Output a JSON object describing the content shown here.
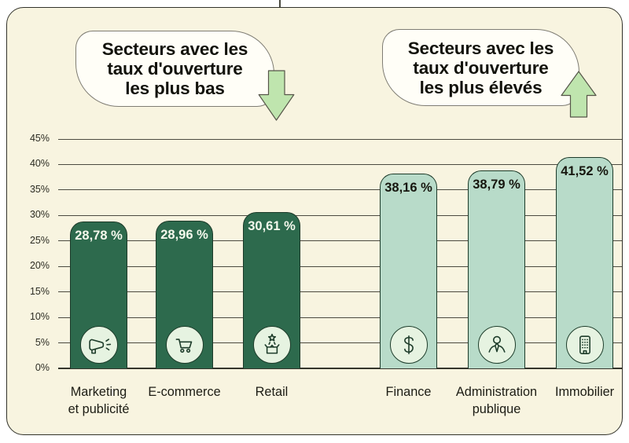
{
  "callouts": {
    "low": {
      "text": "Secteurs avec les\ntaux d'ouverture\nles plus bas",
      "arrow": "down"
    },
    "high": {
      "text": "Secteurs avec les\ntaux d'ouverture\nles plus élevés",
      "arrow": "up"
    }
  },
  "chart_data": {
    "type": "bar",
    "categories": [
      "Marketing et publicité",
      "E-commerce",
      "Retail",
      "Finance",
      "Administration publique",
      "Immobilier"
    ],
    "categories_display": [
      "Marketing\net publicité",
      "E-commerce",
      "Retail",
      "Finance",
      "Administration\npublique",
      "Immobilier"
    ],
    "values": [
      28.78,
      28.96,
      30.61,
      38.16,
      38.79,
      41.52
    ],
    "value_labels": [
      "28,78 %",
      "28,96 %",
      "30,61 %",
      "38,16 %",
      "38,79 %",
      "41,52 %"
    ],
    "groups": [
      "low",
      "low",
      "low",
      "high",
      "high",
      "high"
    ],
    "icons": [
      "megaphone-icon",
      "cart-icon",
      "gift-icon",
      "dollar-icon",
      "person-tie-icon",
      "building-icon"
    ],
    "y_ticks": [
      "45%",
      "40%",
      "35%",
      "30%",
      "25%",
      "20%",
      "15%",
      "10%",
      "5%",
      "0%"
    ],
    "ylim": [
      0,
      45
    ],
    "grid": true,
    "colors": {
      "background": "#f8f4e0",
      "card_border": "#32322a",
      "low_bar": "#2d6a4d",
      "high_bar": "#b8dbc9",
      "icon_circle": "#e6f3e1",
      "icon_stroke": "#1e3d2b",
      "arrow_fill": "#bfe5ae"
    }
  }
}
